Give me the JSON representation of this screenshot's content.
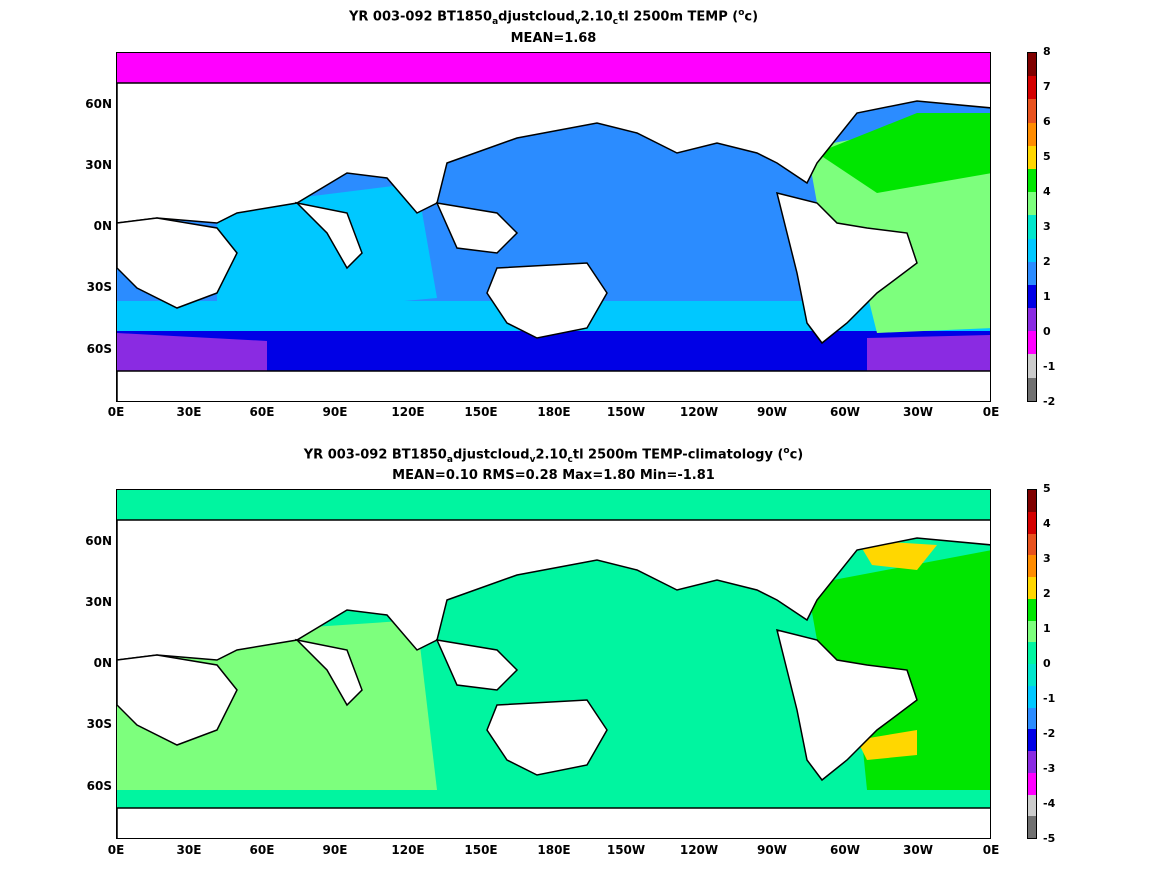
{
  "panel_top": {
    "title_prefix": "YR 003-092 BT1850",
    "title_sub1": "a",
    "title_mid1": "djustcloud",
    "title_sub2": "v",
    "title_mid2": "2.10",
    "title_sub3": "c",
    "title_suffix": "tl 2500m TEMP (",
    "title_unit_sup": "o",
    "title_unit_end": "c)",
    "stats": "MEAN=1.68",
    "colorbar": {
      "labels": [
        "8",
        "7",
        "6",
        "5",
        "4",
        "3",
        "2",
        "1",
        "0",
        "-1",
        "-2"
      ],
      "colors": [
        "#7f0000",
        "#d40000",
        "#e8521e",
        "#ff8c00",
        "#ffd700",
        "#00e600",
        "#7dff7d",
        "#00e6cc",
        "#00c8ff",
        "#2b8cff",
        "#0000e6",
        "#8a2be2",
        "#ff00ff",
        "#cccccc",
        "#707070"
      ]
    }
  },
  "panel_bottom": {
    "title_prefix": "YR 003-092 BT1850",
    "title_sub1": "a",
    "title_mid1": "djustcloud",
    "title_sub2": "v",
    "title_mid2": "2.10",
    "title_sub3": "c",
    "title_suffix": "tl 2500m TEMP-climatology (",
    "title_unit_sup": "o",
    "title_unit_end": "c)",
    "stats": "MEAN=0.10   RMS=0.28   Max=1.80   Min=-1.81",
    "colorbar": {
      "labels": [
        "5",
        "4",
        "3",
        "2",
        "1",
        "0",
        "-1",
        "-2",
        "-3",
        "-4",
        "-5"
      ],
      "colors": [
        "#7f0000",
        "#d40000",
        "#e8521e",
        "#ff8c00",
        "#ffd700",
        "#00e600",
        "#7dff7d",
        "#00f5a0",
        "#00e6cc",
        "#00c8ff",
        "#2b8cff",
        "#0000e6",
        "#8a2be2",
        "#ff00ff",
        "#cccccc",
        "#707070"
      ]
    }
  },
  "axes": {
    "lat_labels": [
      "60N",
      "30N",
      "0N",
      "30S",
      "60S"
    ],
    "lon_labels": [
      "0E",
      "30E",
      "60E",
      "90E",
      "120E",
      "150E",
      "180E",
      "150W",
      "120W",
      "90W",
      "60W",
      "30W",
      "0E"
    ]
  },
  "fill_colors": {
    "land": "#ffffff",
    "coast": "#000000",
    "top_pacific": "#2b8cff",
    "top_southern": "#00c8ff",
    "top_antarctic": "#0000e6",
    "top_weddell": "#8a2be2",
    "top_atlantic": "#7dff7d",
    "top_north_atl": "#00e600",
    "top_arctic": "#ff00ff",
    "bot_pacific": "#00f5a0",
    "bot_indian": "#7dff7d",
    "bot_atlantic": "#00e600",
    "bot_yellow": "#ffd700"
  }
}
